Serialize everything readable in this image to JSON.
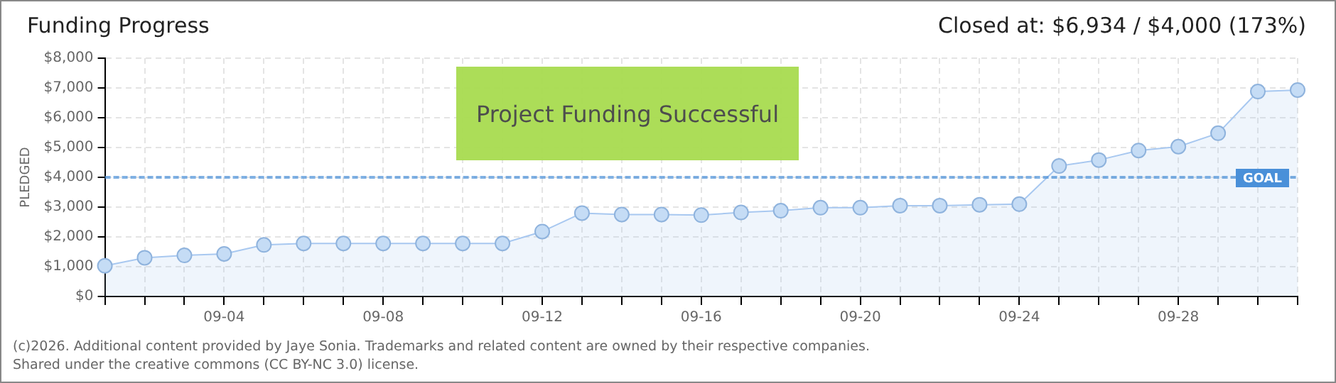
{
  "chart_data": {
    "type": "area",
    "title": "Funding Progress",
    "ylabel": "PLEDGED",
    "annotations": [
      "Closed at: $6,934 / $4,000 (173%)",
      "Project Funding Successful",
      "(c)2026. Additional content provided by Jaye Sonia. Trademarks and related content are owned by their respective companies.",
      "Shared under the creative commons (CC BY-NC 3.0) license."
    ],
    "categories": [
      null,
      null,
      null,
      "09-04",
      null,
      null,
      null,
      "09-08",
      null,
      null,
      null,
      "09-12",
      null,
      null,
      null,
      "09-16",
      null,
      null,
      null,
      "09-20",
      null,
      null,
      null,
      "09-24",
      null,
      null,
      null,
      "09-28",
      null,
      null,
      null
    ],
    "series": [
      {
        "color": "#a8c8f0",
        "values": [
          1030,
          1300,
          1380,
          1430,
          1730,
          1780,
          1780,
          1780,
          1780,
          1780,
          1780,
          2180,
          2800,
          2750,
          2750,
          2730,
          2820,
          2880,
          2980,
          2980,
          3050,
          3050,
          3080,
          3100,
          4380,
          4580,
          4900,
          5030,
          5480,
          6880,
          6930
        ]
      }
    ],
    "ylim": [
      0,
      8000
    ],
    "yticks": [
      {
        "value": 0,
        "label": "$0"
      },
      {
        "value": 1000,
        "label": "$1,000"
      },
      {
        "value": 2000,
        "label": "$2,000"
      },
      {
        "value": 3000,
        "label": "$3,000"
      },
      {
        "value": 4000,
        "label": "$4,000"
      },
      {
        "value": 5000,
        "label": "$5,000"
      },
      {
        "value": 6000,
        "label": "$6,000"
      },
      {
        "value": 7000,
        "label": "$7,000"
      },
      {
        "value": 8000,
        "label": "$8,000"
      }
    ],
    "ref_lines": [
      {
        "axis": "y",
        "value": 4000,
        "label": "GOAL",
        "color": "#4a90d9",
        "line_style": "dashed"
      }
    ],
    "grid": true,
    "legend": false,
    "marker": "circle",
    "line_style": "solid"
  }
}
